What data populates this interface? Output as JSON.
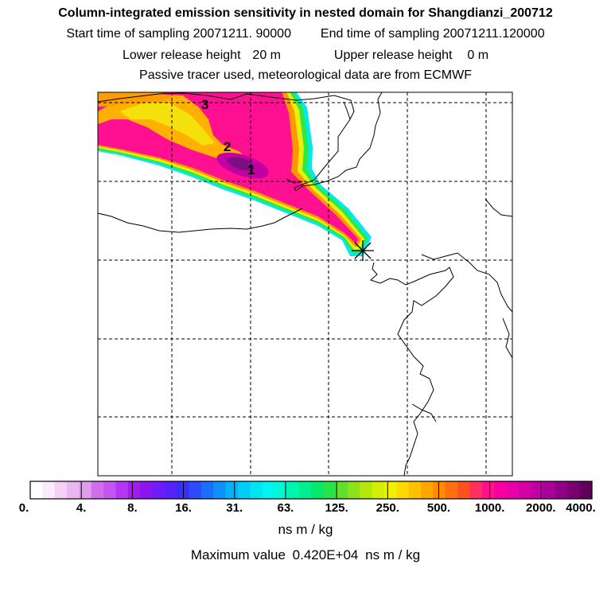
{
  "title": {
    "main": "Column-integrated emission sensitivity in nested domain for Shangdianzi_200712",
    "start_label": "Start time of sampling",
    "start_value": "20071211. 90000",
    "end_label": "End time of sampling",
    "end_value": "20071211.120000",
    "lower_label": "Lower release height",
    "lower_value": "20 m",
    "upper_label": "Upper release height",
    "upper_value": "0 m",
    "note": "Passive tracer used, meteorological data are from ECMWF"
  },
  "map": {
    "contour_labels": [
      "1",
      "2",
      "3"
    ],
    "receptor_marker": "star-icon",
    "colors": {
      "border": "#000000",
      "grid": "#000000",
      "coast": "#000000"
    }
  },
  "colorbar": {
    "tick_labels": [
      "0.",
      "4.",
      "8.",
      "16.",
      "31.",
      "63.",
      "125.",
      "250.",
      "500.",
      "1000.",
      "2000.",
      "4000."
    ],
    "colors": [
      "#ffffff",
      "#fbeafc",
      "#f4d0f7",
      "#eab6f2",
      "#e09cee",
      "#cf70ea",
      "#c455f0",
      "#b637f2",
      "#a21cf0",
      "#8a15ee",
      "#6f1cf6",
      "#5522fa",
      "#3a2dfb",
      "#2a4cfb",
      "#1a6ffc",
      "#0f90fb",
      "#04b3fa",
      "#00cdf8",
      "#00e4f4",
      "#00f6ee",
      "#00f8d4",
      "#00f5b2",
      "#00f090",
      "#06e96a",
      "#2ae24a",
      "#60e02c",
      "#8ee21a",
      "#b4e80c",
      "#d5ee06",
      "#f0f004",
      "#ffd800",
      "#ffc000",
      "#ffa600",
      "#ff8c00",
      "#ff6e10",
      "#ff5020",
      "#ff3060",
      "#ff1090",
      "#f800a0",
      "#e800a8",
      "#d400a8",
      "#c000a4",
      "#a80098",
      "#900088",
      "#780070",
      "#600058"
    ],
    "units": "ns m / kg",
    "max_label": "Maximum value",
    "max_value": "0.420E+04",
    "max_units": "ns m / kg"
  }
}
